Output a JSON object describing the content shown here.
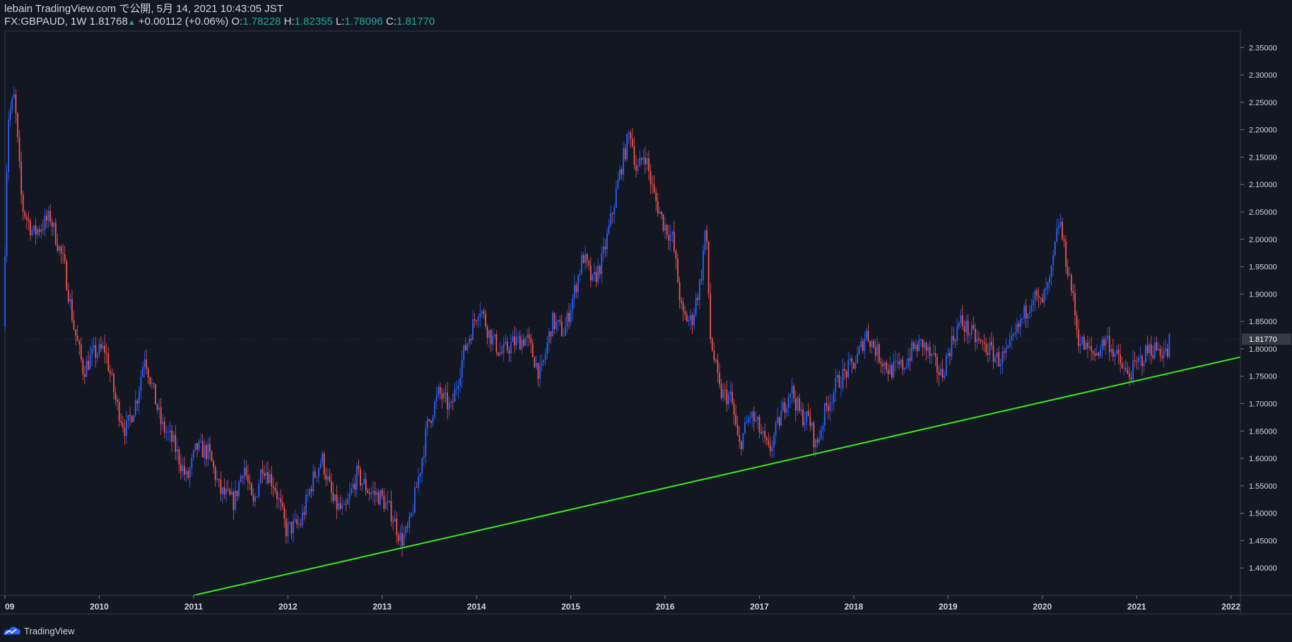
{
  "header": {
    "line1": "lebain TradingView.com で公開, 5月 14, 2021 10:43:05 JST",
    "symbol": "FX:GBPAUD, 1W",
    "last": "1.81768",
    "change": "+0.00112 (+0.06%)",
    "o_label": "O:",
    "o_value": "1.78228",
    "h_label": "H:",
    "h_value": "1.82355",
    "l_label": "L:",
    "l_value": "1.78096",
    "c_label": "C:",
    "c_value": "1.81770"
  },
  "footer": {
    "brand": "TradingView"
  },
  "colors": {
    "background": "#131722",
    "up_candle": "#2962ff",
    "down_candle": "#ef5350",
    "trendline": "#39e81a",
    "axis": "#363a45",
    "text": "#d1d4dc"
  },
  "chart_data": {
    "type": "candlestick",
    "symbol": "FX:GBPAUD",
    "interval": "1W",
    "x_range": [
      2009.0,
      2022.1
    ],
    "ylim": [
      1.35,
      2.38
    ],
    "x_ticks": [
      "09",
      "2010",
      "2011",
      "2012",
      "2013",
      "2014",
      "2015",
      "2016",
      "2017",
      "2018",
      "2019",
      "2020",
      "2021",
      "2022"
    ],
    "x_tick_positions": [
      2009,
      2010,
      2011,
      2012,
      2013,
      2014,
      2015,
      2016,
      2017,
      2018,
      2019,
      2020,
      2021,
      2022
    ],
    "y_ticks": [
      "1.40000",
      "1.45000",
      "1.50000",
      "1.55000",
      "1.60000",
      "1.65000",
      "1.70000",
      "1.75000",
      "1.80000",
      "1.85000",
      "1.90000",
      "1.95000",
      "2.00000",
      "2.05000",
      "2.10000",
      "2.15000",
      "2.20000",
      "2.25000",
      "2.30000",
      "2.35000"
    ],
    "y_tick_values": [
      1.4,
      1.45,
      1.5,
      1.55,
      1.6,
      1.65,
      1.7,
      1.75,
      1.8,
      1.85,
      1.9,
      1.95,
      2.0,
      2.05,
      2.1,
      2.15,
      2.2,
      2.25,
      2.3,
      2.35
    ],
    "last_price": 1.8177,
    "last_price_label": "1.81770",
    "price_path": [
      [
        2009.0,
        1.84
      ],
      [
        2009.05,
        2.22
      ],
      [
        2009.12,
        2.26
      ],
      [
        2009.2,
        2.06
      ],
      [
        2009.32,
        2.01
      ],
      [
        2009.5,
        2.04
      ],
      [
        2009.65,
        1.95
      ],
      [
        2009.75,
        1.84
      ],
      [
        2009.85,
        1.76
      ],
      [
        2009.95,
        1.79
      ],
      [
        2010.08,
        1.8
      ],
      [
        2010.2,
        1.7
      ],
      [
        2010.3,
        1.65
      ],
      [
        2010.42,
        1.71
      ],
      [
        2010.5,
        1.79
      ],
      [
        2010.58,
        1.73
      ],
      [
        2010.68,
        1.66
      ],
      [
        2010.8,
        1.63
      ],
      [
        2010.95,
        1.56
      ],
      [
        2011.05,
        1.62
      ],
      [
        2011.18,
        1.61
      ],
      [
        2011.3,
        1.54
      ],
      [
        2011.45,
        1.52
      ],
      [
        2011.55,
        1.59
      ],
      [
        2011.65,
        1.51
      ],
      [
        2011.75,
        1.59
      ],
      [
        2011.88,
        1.55
      ],
      [
        2012.0,
        1.47
      ],
      [
        2012.15,
        1.48
      ],
      [
        2012.28,
        1.56
      ],
      [
        2012.38,
        1.6
      ],
      [
        2012.5,
        1.52
      ],
      [
        2012.62,
        1.5
      ],
      [
        2012.75,
        1.57
      ],
      [
        2012.88,
        1.54
      ],
      [
        2013.0,
        1.53
      ],
      [
        2013.12,
        1.5
      ],
      [
        2013.22,
        1.45
      ],
      [
        2013.3,
        1.47
      ],
      [
        2013.42,
        1.58
      ],
      [
        2013.5,
        1.66
      ],
      [
        2013.62,
        1.72
      ],
      [
        2013.75,
        1.69
      ],
      [
        2013.88,
        1.79
      ],
      [
        2014.05,
        1.88
      ],
      [
        2014.15,
        1.83
      ],
      [
        2014.28,
        1.79
      ],
      [
        2014.4,
        1.81
      ],
      [
        2014.55,
        1.82
      ],
      [
        2014.7,
        1.75
      ],
      [
        2014.82,
        1.85
      ],
      [
        2014.95,
        1.83
      ],
      [
        2015.05,
        1.9
      ],
      [
        2015.15,
        1.97
      ],
      [
        2015.25,
        1.92
      ],
      [
        2015.35,
        1.96
      ],
      [
        2015.45,
        2.04
      ],
      [
        2015.55,
        2.13
      ],
      [
        2015.65,
        2.2
      ],
      [
        2015.72,
        2.12
      ],
      [
        2015.8,
        2.16
      ],
      [
        2015.9,
        2.08
      ],
      [
        2016.0,
        2.03
      ],
      [
        2016.1,
        2.0
      ],
      [
        2016.2,
        1.86
      ],
      [
        2016.3,
        1.85
      ],
      [
        2016.4,
        1.93
      ],
      [
        2016.45,
        2.03
      ],
      [
        2016.5,
        1.82
      ],
      [
        2016.6,
        1.72
      ],
      [
        2016.72,
        1.71
      ],
      [
        2016.8,
        1.62
      ],
      [
        2016.92,
        1.68
      ],
      [
        2017.0,
        1.66
      ],
      [
        2017.12,
        1.61
      ],
      [
        2017.25,
        1.68
      ],
      [
        2017.35,
        1.73
      ],
      [
        2017.45,
        1.68
      ],
      [
        2017.55,
        1.67
      ],
      [
        2017.62,
        1.62
      ],
      [
        2017.72,
        1.69
      ],
      [
        2017.85,
        1.74
      ],
      [
        2017.95,
        1.76
      ],
      [
        2018.05,
        1.78
      ],
      [
        2018.15,
        1.83
      ],
      [
        2018.28,
        1.79
      ],
      [
        2018.4,
        1.76
      ],
      [
        2018.55,
        1.77
      ],
      [
        2018.65,
        1.8
      ],
      [
        2018.75,
        1.81
      ],
      [
        2018.85,
        1.78
      ],
      [
        2018.95,
        1.75
      ],
      [
        2019.05,
        1.81
      ],
      [
        2019.15,
        1.85
      ],
      [
        2019.25,
        1.83
      ],
      [
        2019.35,
        1.81
      ],
      [
        2019.45,
        1.8
      ],
      [
        2019.55,
        1.78
      ],
      [
        2019.65,
        1.79
      ],
      [
        2019.72,
        1.82
      ],
      [
        2019.82,
        1.86
      ],
      [
        2019.92,
        1.9
      ],
      [
        2020.0,
        1.88
      ],
      [
        2020.1,
        1.92
      ],
      [
        2020.2,
        2.04
      ],
      [
        2020.25,
        1.98
      ],
      [
        2020.32,
        1.92
      ],
      [
        2020.4,
        1.82
      ],
      [
        2020.48,
        1.8
      ],
      [
        2020.58,
        1.79
      ],
      [
        2020.7,
        1.82
      ],
      [
        2020.82,
        1.78
      ],
      [
        2020.92,
        1.75
      ],
      [
        2021.02,
        1.77
      ],
      [
        2021.15,
        1.8
      ],
      [
        2021.25,
        1.8
      ],
      [
        2021.35,
        1.79
      ],
      [
        2021.36,
        1.8177
      ]
    ],
    "trendline": {
      "from": [
        2011.0,
        1.35
      ],
      "to": [
        2022.1,
        1.785
      ]
    }
  }
}
